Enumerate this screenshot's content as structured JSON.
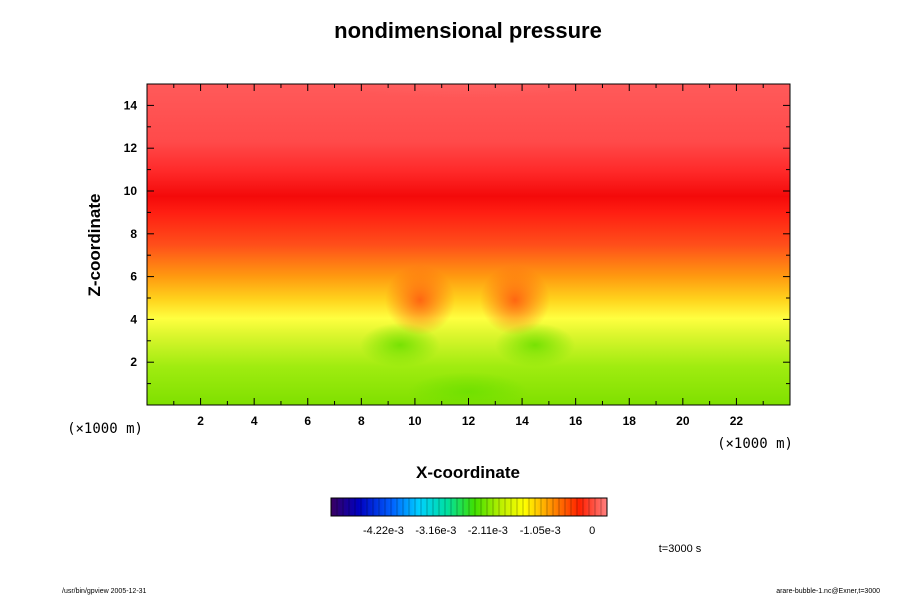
{
  "chart_data": {
    "type": "heatmap",
    "title": "nondimensional pressure",
    "xlabel": "X-coordinate",
    "ylabel": "Z-coordinate",
    "x_units": "(×1000 m)",
    "z_units": "(×1000 m)",
    "xlim": [
      0,
      24
    ],
    "ylim": [
      0,
      15
    ],
    "x_ticks": [
      2,
      4,
      6,
      8,
      10,
      12,
      14,
      16,
      18,
      20,
      22
    ],
    "y_ticks": [
      2,
      4,
      6,
      8,
      10,
      12,
      14
    ],
    "colorbar": {
      "tick_labels": [
        "-4.22e-3",
        "-3.16e-3",
        "-2.11e-3",
        "-1.05e-3",
        "0"
      ],
      "min": -0.00528,
      "max": 0.0003
    },
    "time_label": "t=3000 s",
    "field_description": "Nondimensional pressure perturbation; near 0 (red) aloft around z=8-10 km, lighter pink above 12 km, decreasing toward yellow at z~4 km and green near the surface, with a bubble signature around x=9-15 km."
  },
  "footer": {
    "left": "/usr/bin/gpview 2005-12-31",
    "right": "arare-bubble-1.nc@Exner,t=3000"
  }
}
